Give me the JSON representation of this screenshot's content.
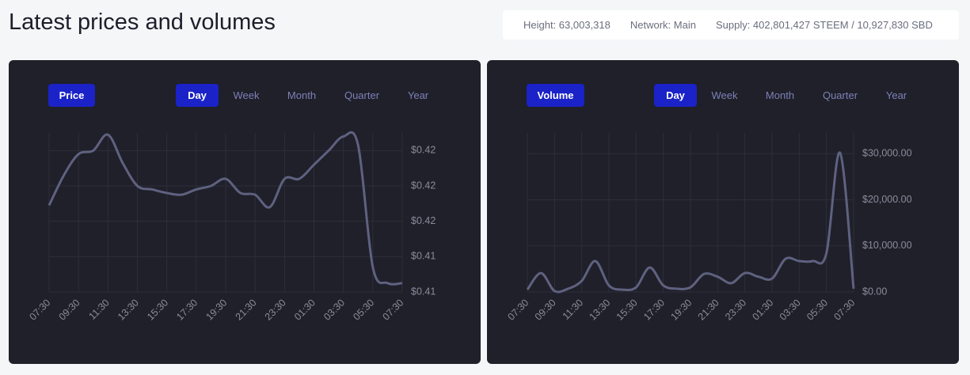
{
  "header": {
    "title": "Latest prices and volumes",
    "stats": [
      "Height: 63,003,318",
      "Network: Main",
      "Supply: 402,801,427 STEEM / 10,927,830 SBD"
    ]
  },
  "panels": [
    {
      "label": "Price",
      "periods": [
        "Day",
        "Week",
        "Month",
        "Quarter",
        "Year"
      ],
      "active_period": 0,
      "chart_data": {
        "type": "line",
        "color": "#5f6180",
        "grid": true,
        "categories": [
          "07:30",
          null,
          "09:30",
          null,
          "11:30",
          null,
          "13:30",
          null,
          "15:30",
          null,
          "17:30",
          null,
          "19:30",
          null,
          "21:30",
          null,
          "23:30",
          null,
          "01:30",
          null,
          "03:30",
          null,
          "05:30",
          null,
          "07:30"
        ],
        "values": [
          0.4159,
          0.4176,
          0.4188,
          0.419,
          0.4199,
          0.4183,
          0.417,
          0.4168,
          0.4166,
          0.4165,
          0.4168,
          0.417,
          0.4174,
          0.4166,
          0.4165,
          0.4158,
          0.4174,
          0.4174,
          0.4182,
          0.419,
          0.4198,
          0.4193,
          0.4124,
          0.4115,
          0.4115
        ],
        "ylim": [
          0.411,
          0.42
        ],
        "yticks": [
          {
            "value": 0.411,
            "label": "$0.41"
          },
          {
            "value": 0.413,
            "label": "$0.41"
          },
          {
            "value": 0.415,
            "label": "$0.42"
          },
          {
            "value": 0.417,
            "label": "$0.42"
          },
          {
            "value": 0.419,
            "label": "$0.42"
          }
        ]
      }
    },
    {
      "label": "Volume",
      "periods": [
        "Day",
        "Week",
        "Month",
        "Quarter",
        "Year"
      ],
      "active_period": 0,
      "chart_data": {
        "type": "line",
        "color": "#5f6180",
        "grid": true,
        "categories": [
          "07:30",
          null,
          "09:30",
          null,
          "11:30",
          null,
          "13:30",
          null,
          "15:30",
          null,
          "17:30",
          null,
          "19:30",
          null,
          "21:30",
          null,
          "23:30",
          null,
          "01:30",
          null,
          "03:30",
          null,
          "05:30",
          null,
          "07:30"
        ],
        "values": [
          500,
          4100,
          200,
          700,
          2400,
          6700,
          1400,
          500,
          1000,
          5300,
          1400,
          700,
          1000,
          3900,
          3300,
          1900,
          4100,
          3300,
          2900,
          7200,
          6700,
          6700,
          8400,
          30200,
          700
        ],
        "ylim": [
          0,
          34500
        ],
        "yticks": [
          {
            "value": 0,
            "label": "$0.00"
          },
          {
            "value": 10000,
            "label": "$10,000.00"
          },
          {
            "value": 20000,
            "label": "$20,000.00"
          },
          {
            "value": 30000,
            "label": "$30,000.00"
          }
        ]
      }
    }
  ]
}
